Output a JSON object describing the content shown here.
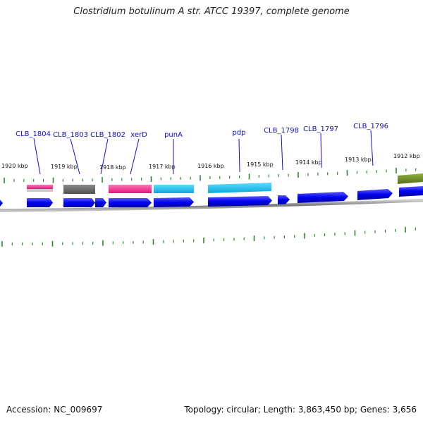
{
  "title": "Clostridium botulinum A str. ATCC 19397, complete genome",
  "footer": {
    "accession": "Accession: NC_009697",
    "summary": "Topology: circular; Length: 3,863,450 bp; Genes: 3,656"
  },
  "kbp_labels": [
    "1920 kbp",
    "1919 kbp",
    "1918 kbp",
    "1917 kbp",
    "1916 kbp",
    "1915 kbp",
    "1914 kbp",
    "1913 kbp",
    "1912 kbp"
  ],
  "gene_labels": [
    "CLB_1804",
    "CLB_1803",
    "CLB_1802",
    "xerD",
    "punA",
    "pdp",
    "CLB_1798",
    "CLB_1797",
    "CLB_1796"
  ],
  "colors": {
    "cds": "#0000ee",
    "pink": "#ff2a8f",
    "gray": "#6a6a6a",
    "cyan": "#18c0ee",
    "olive": "#6b8e23",
    "ticks": "#2a8a2a",
    "backbone": "#888888",
    "label": "#1010cc"
  }
}
